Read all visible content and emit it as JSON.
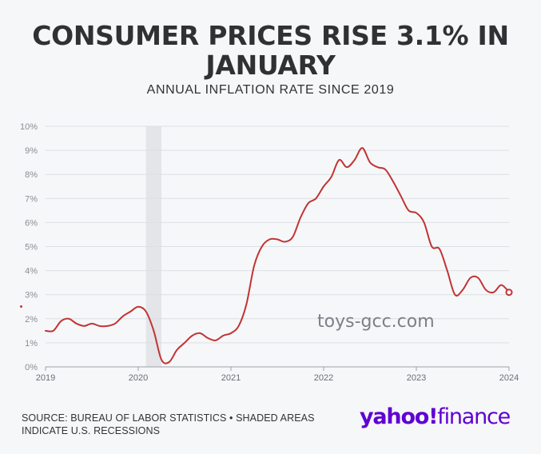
{
  "header": {
    "title": "CONSUMER PRICES RISE 3.1% IN JANUARY",
    "subtitle": "ANNUAL INFLATION RATE SINCE 2019"
  },
  "watermark": "toys-gcc.com",
  "footer": {
    "source_line1": "SOURCE: BUREAU OF LABOR STATISTICS • SHADED AREAS",
    "source_line2": "INDICATE U.S. RECESSIONS"
  },
  "logo": {
    "part1": "yahoo",
    "part2": "finance",
    "exclaim": "!"
  },
  "colors": {
    "line": "#c23333",
    "recession": "#e3e5e8",
    "grid": "#dcdfe3",
    "brand": "#6001d2"
  },
  "chart_data": {
    "type": "line",
    "title": "CONSUMER PRICES RISE 3.1% IN JANUARY",
    "subtitle": "ANNUAL INFLATION RATE SINCE 2019",
    "xlabel": "",
    "ylabel": "",
    "ylim": [
      0,
      10
    ],
    "yticks": [
      "0%",
      "1%",
      "2%",
      "3%",
      "4%",
      "5%",
      "6%",
      "7%",
      "8%",
      "9%",
      "10%"
    ],
    "xticks": [
      "2019",
      "2020",
      "2021",
      "2022",
      "2023",
      "2024"
    ],
    "xlim": [
      "2019-01",
      "2024-01"
    ],
    "grid": true,
    "recessions": [
      {
        "start": "2020-02",
        "end": "2020-04"
      }
    ],
    "series": [
      {
        "x": [
          "2019-01",
          "2019-02",
          "2019-03",
          "2019-04",
          "2019-05",
          "2019-06",
          "2019-07",
          "2019-08",
          "2019-09",
          "2019-10",
          "2019-11",
          "2019-12",
          "2020-01",
          "2020-02",
          "2020-03",
          "2020-04",
          "2020-05",
          "2020-06",
          "2020-07",
          "2020-08",
          "2020-09",
          "2020-10",
          "2020-11",
          "2020-12",
          "2021-01",
          "2021-02",
          "2021-03",
          "2021-04",
          "2021-05",
          "2021-06",
          "2021-07",
          "2021-08",
          "2021-09",
          "2021-10",
          "2021-11",
          "2021-12",
          "2022-01",
          "2022-02",
          "2022-03",
          "2022-04",
          "2022-05",
          "2022-06",
          "2022-07",
          "2022-08",
          "2022-09",
          "2022-10",
          "2022-11",
          "2022-12",
          "2023-01",
          "2023-02",
          "2023-03",
          "2023-04",
          "2023-05",
          "2023-06",
          "2023-07",
          "2023-08",
          "2023-09",
          "2023-10",
          "2023-11",
          "2023-12",
          "2024-01"
        ],
        "values": [
          1.5,
          1.5,
          1.9,
          2.0,
          1.8,
          1.7,
          1.8,
          1.7,
          1.7,
          1.8,
          2.1,
          2.3,
          2.5,
          2.3,
          1.5,
          0.3,
          0.2,
          0.7,
          1.0,
          1.3,
          1.4,
          1.2,
          1.1,
          1.3,
          1.4,
          1.7,
          2.6,
          4.2,
          5.0,
          5.3,
          5.3,
          5.2,
          5.4,
          6.2,
          6.8,
          7.0,
          7.5,
          7.9,
          8.6,
          8.3,
          8.6,
          9.1,
          8.5,
          8.3,
          8.2,
          7.7,
          7.1,
          6.5,
          6.4,
          6.0,
          5.0,
          4.9,
          4.0,
          3.0,
          3.2,
          3.7,
          3.7,
          3.2,
          3.1,
          3.4,
          3.1
        ]
      }
    ]
  }
}
